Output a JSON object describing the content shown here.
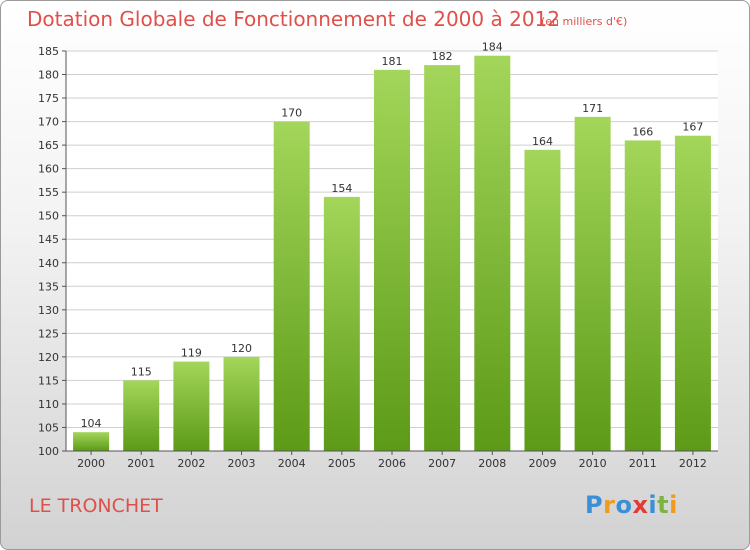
{
  "header": {
    "title": "Dotation Globale de Fonctionnement de 2000 à 2012",
    "unit": "(en milliers d'€)"
  },
  "footer": {
    "commune": "LE TRONCHET",
    "logo_letters": [
      "P",
      "r",
      "o",
      "x",
      "i",
      "t",
      "i"
    ]
  },
  "colors": {
    "title": "#e0504b",
    "bar_top": "#a3d65a",
    "bar_bottom": "#5c9a17"
  },
  "chart_data": {
    "type": "bar",
    "title": "Dotation Globale de Fonctionnement de 2000 à 2012",
    "subtitle": "(en milliers d'€)",
    "categories": [
      "2000",
      "2001",
      "2002",
      "2003",
      "2004",
      "2005",
      "2006",
      "2007",
      "2008",
      "2009",
      "2010",
      "2011",
      "2012"
    ],
    "values": [
      104,
      115,
      119,
      120,
      170,
      154,
      181,
      182,
      184,
      164,
      171,
      166,
      167
    ],
    "ylim": [
      100,
      185
    ],
    "yticks": [
      100,
      105,
      110,
      115,
      120,
      125,
      130,
      135,
      140,
      145,
      150,
      155,
      160,
      165,
      170,
      175,
      180,
      185
    ],
    "grid": true,
    "data_labels": true
  }
}
